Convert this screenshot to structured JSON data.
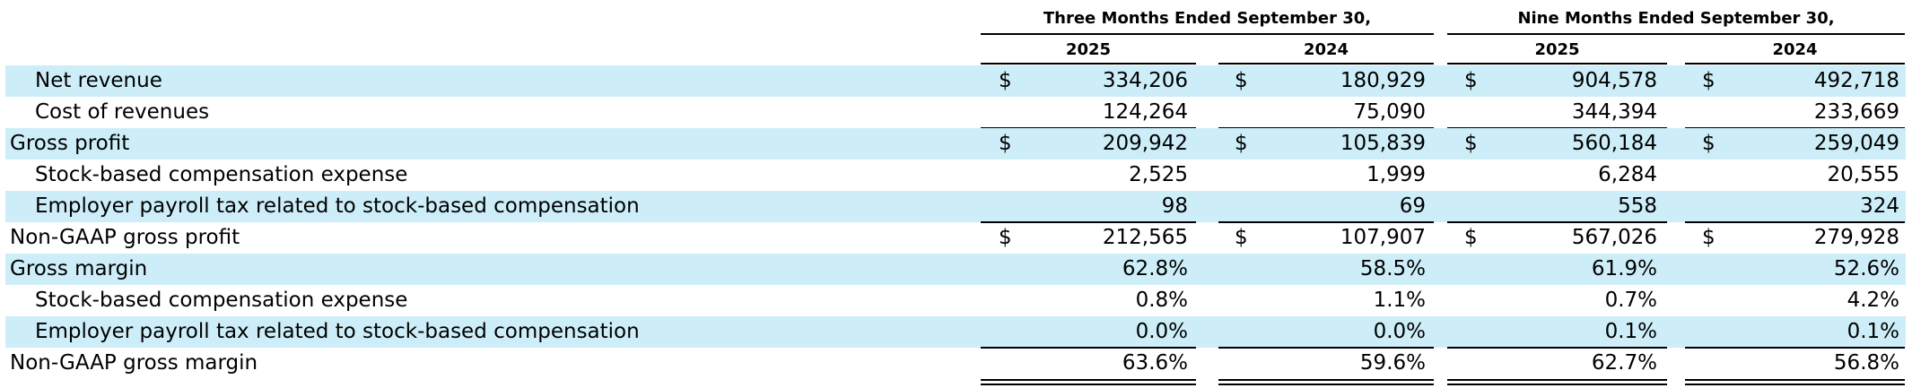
{
  "header": {
    "group1": "Three Months Ended September 30,",
    "group2": "Nine Months Ended September 30,",
    "years": [
      "2025",
      "2024",
      "2025",
      "2024"
    ]
  },
  "rows": [
    {
      "label": "Net revenue",
      "currency": true,
      "values": [
        "334,206",
        "180,929",
        "904,578",
        "492,718"
      ]
    },
    {
      "label": "Cost of revenues",
      "currency": false,
      "values": [
        "124,264",
        "75,090",
        "344,394",
        "233,669"
      ]
    },
    {
      "label": "Gross profit",
      "currency": true,
      "values": [
        "209,942",
        "105,839",
        "560,184",
        "259,049"
      ]
    },
    {
      "label": "Stock-based compensation expense",
      "currency": false,
      "values": [
        "2,525",
        "1,999",
        "6,284",
        "20,555"
      ]
    },
    {
      "label": "Employer payroll tax related to stock-based compensation",
      "currency": false,
      "values": [
        "98",
        "69",
        "558",
        "324"
      ]
    },
    {
      "label": "Non-GAAP gross profit",
      "currency": true,
      "values": [
        "212,565",
        "107,907",
        "567,026",
        "279,928"
      ]
    },
    {
      "label": "Gross margin",
      "currency": false,
      "values": [
        "62.8%",
        "58.5%",
        "61.9%",
        "52.6%"
      ]
    },
    {
      "label": "Stock-based compensation expense",
      "currency": false,
      "values": [
        "0.8%",
        "1.1%",
        "0.7%",
        "4.2%"
      ]
    },
    {
      "label": "Employer payroll tax related to stock-based compensation",
      "currency": false,
      "values": [
        "0.0%",
        "0.0%",
        "0.1%",
        "0.1%"
      ]
    },
    {
      "label": "Non-GAAP gross margin",
      "currency": false,
      "values": [
        "63.6%",
        "59.6%",
        "62.7%",
        "56.8%"
      ]
    }
  ],
  "currency_symbol": "$",
  "colors": {
    "row_shade": "#cdeef9"
  }
}
